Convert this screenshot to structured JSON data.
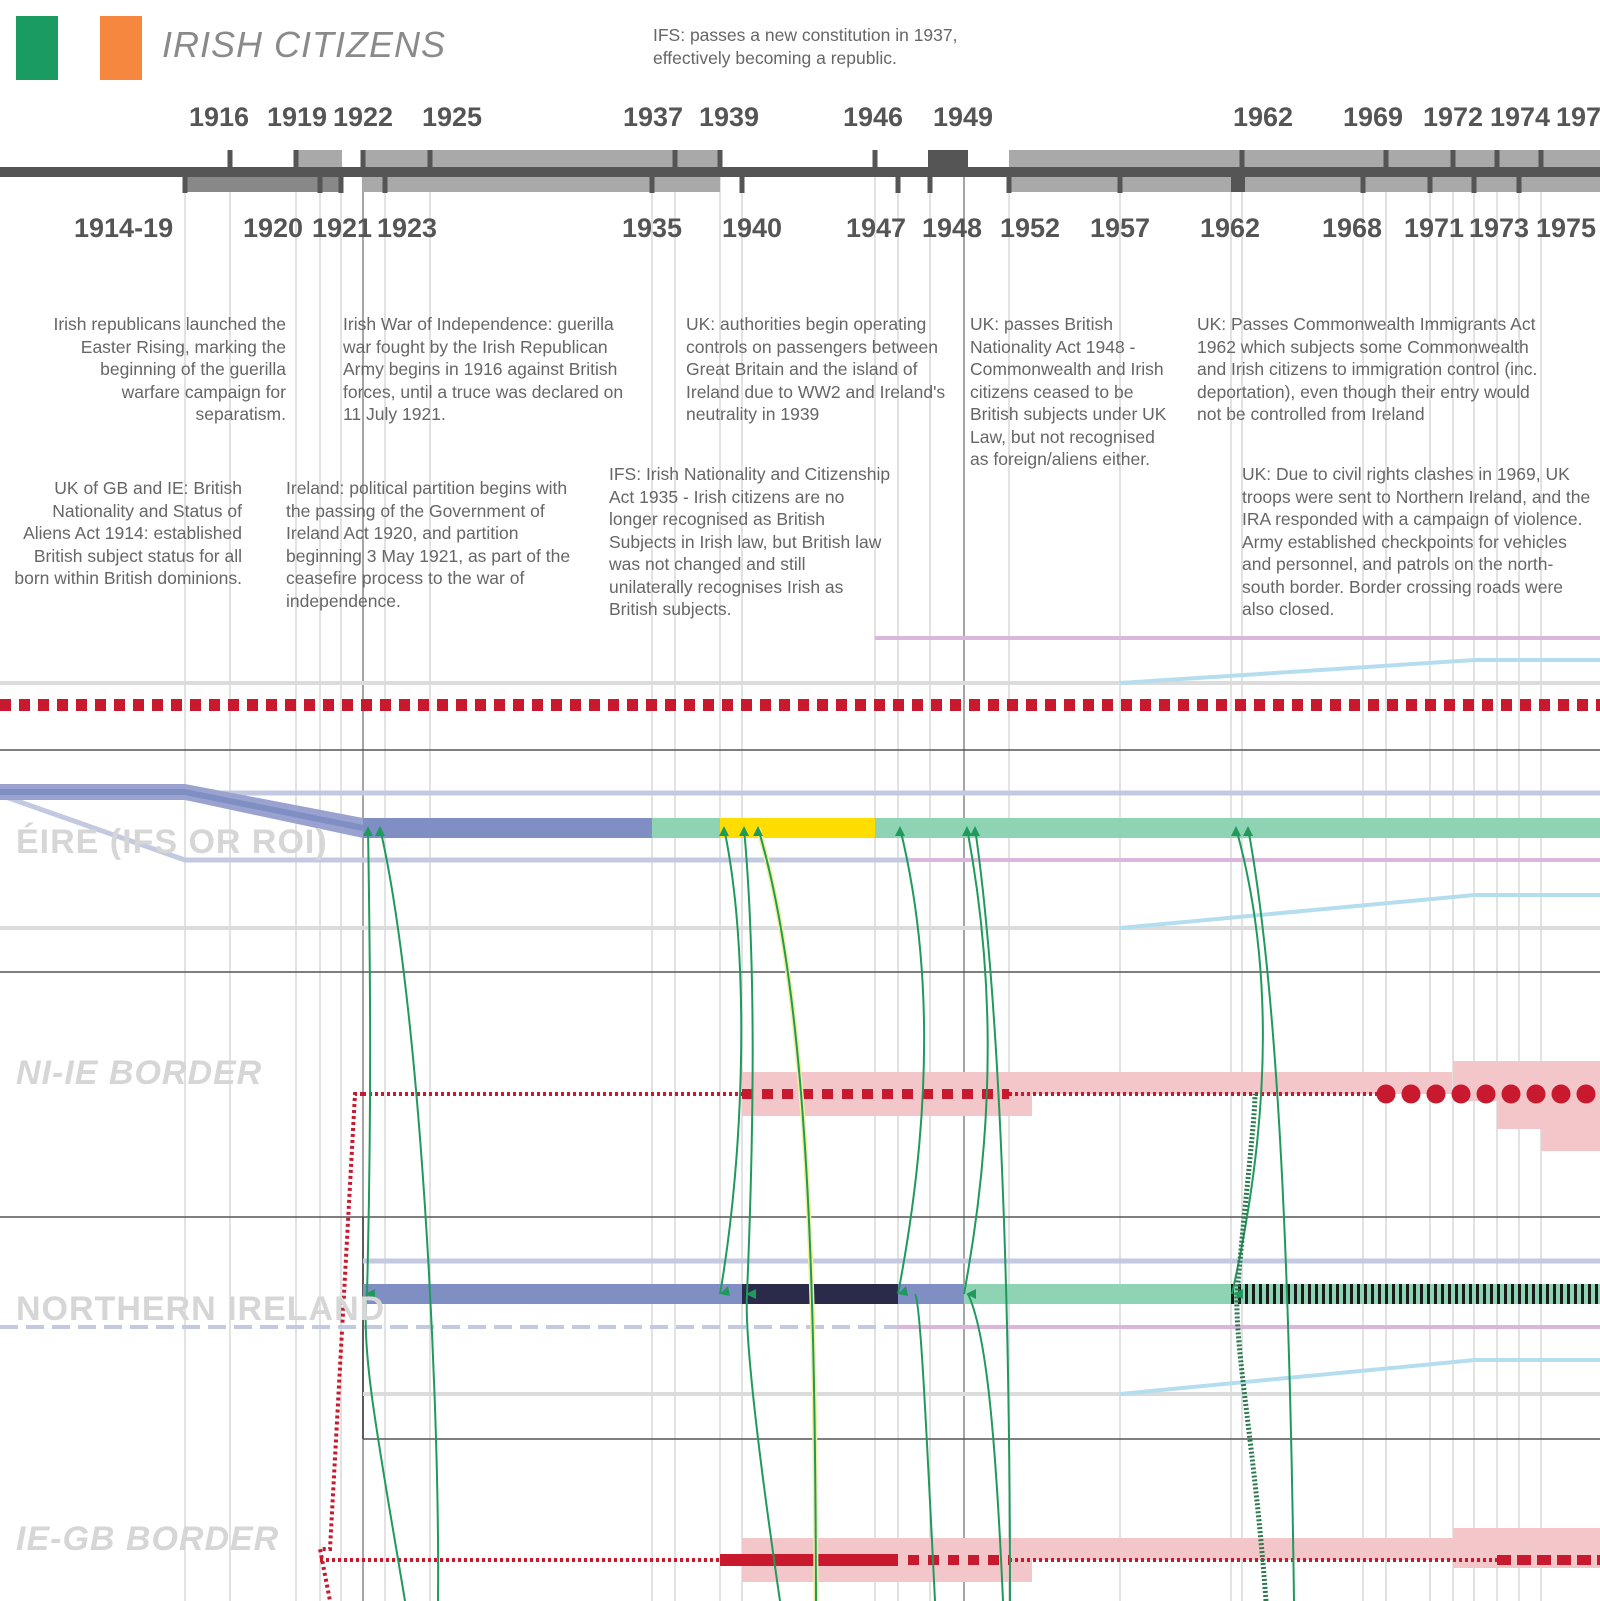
{
  "header": {
    "title": "IRISH CITIZENS",
    "flag_colors": [
      "#1a9b62",
      "#f5873f"
    ],
    "constitution_note": "IFS: passes a new constitution in 1937, effectively becoming a republic."
  },
  "timeline": {
    "top_years": [
      "1916",
      "1919",
      "1922",
      "1925",
      "1937",
      "1939",
      "1946",
      "1949",
      "1962",
      "1969",
      "1972",
      "1974",
      "197"
    ],
    "bottom_years": [
      "1914-19",
      "1920",
      "1921",
      "1923",
      "1935",
      "1940",
      "1947",
      "1948",
      "1952",
      "1957",
      "1962",
      "1968",
      "1971",
      "1973",
      "1975"
    ]
  },
  "notes": [
    {
      "id": "easter-rising",
      "text": "Irish republicans launched the Easter Rising, marking the beginning of the guerilla warfare campaign for separatism."
    },
    {
      "id": "war-of-independence",
      "text": "Irish War of Independence: guerilla war fought by the Irish Republican Army begins in 1916 against British forces, until a truce was declared on 11 July 1921."
    },
    {
      "id": "ww2-controls",
      "text": "UK: authorities begin operating controls on passengers between Great Britain and the island of Ireland due to WW2 and Ireland's neutrality in 1939"
    },
    {
      "id": "bna-1948",
      "text": "UK: passes British Nationality Act 1948 - Commonwealth and Irish citizens ceased to be British subjects under UK Law, but not recognised as foreign/aliens either."
    },
    {
      "id": "cia-1962",
      "text": "UK: Passes Commonwealth Immigrants Act 1962 which subjects some Commonwealth and Irish citizens to immigration control (inc. deportation), even though their entry would not be controlled from Ireland"
    },
    {
      "id": "bnsa-1914",
      "text": "UK of GB and IE: British Nationality and Status of Aliens Act 1914: established British subject status for all born within British dominions."
    },
    {
      "id": "partition",
      "text": "Ireland: political partition begins with the passing of the Government of Ireland Act 1920, and partition beginning 3 May 1921, as part of the ceasefire process to the war of independence."
    },
    {
      "id": "ifs-1935",
      "text": "IFS: Irish Nationality and Citizenship Act 1935 - Irish citizens are no longer recognised as British Subjects in Irish law, but British law was not changed and still unilaterally recognises Irish as British subjects."
    },
    {
      "id": "troubles-1969",
      "text": "UK: Due to civil rights clashes in 1969, UK troops were sent to Northern Ireland, and the IRA responded with a campaign of violence. Army established checkpoints for vehicles and personnel, and patrols on the north-south border. Border crossing roads were also closed."
    }
  ],
  "lanes": [
    {
      "id": "eire",
      "label": "ÉIRE (IFS OR ROI)"
    },
    {
      "id": "ni-ie-border",
      "label": "NI-IE BORDER"
    },
    {
      "id": "northern-ireland",
      "label": "NORTHERN IRELAND"
    },
    {
      "id": "ie-gb-border",
      "label": "IE-GB BORDER"
    }
  ],
  "colors": {
    "timeline_dark": "#555555",
    "period_gray": "#a9a9a9",
    "uk_blue": "#7f8fc4",
    "irish_green": "#6cc59d",
    "arrow_green": "#1f9a5c",
    "ww2_yellow": "#ffdd00",
    "ww2_navy": "#2a2b4a",
    "border_red": "#c8192e",
    "border_pink": "#f3c6ca",
    "purple": "#dcb5dc",
    "light_blue": "#b5ddf0",
    "light_gray": "#dcdcdc"
  }
}
